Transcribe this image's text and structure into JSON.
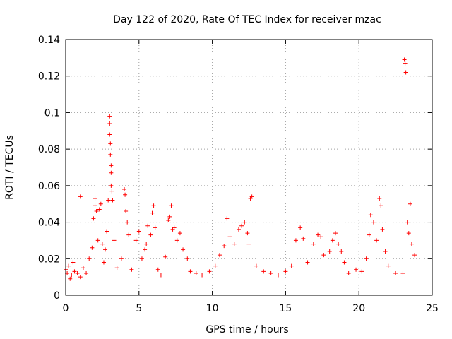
{
  "chart_data": {
    "type": "scatter",
    "title": "Day 122 of 2020, Rate Of TEC Index for receiver mzac",
    "xlabel": "GPS time / hours",
    "ylabel": "ROTI / TECUs",
    "xlim": [
      0,
      25
    ],
    "ylim": [
      0,
      0.14
    ],
    "xticks": [
      0,
      5,
      10,
      15,
      20,
      25
    ],
    "xtick_labels": [
      "0",
      "5",
      "10",
      "15",
      "20",
      "25"
    ],
    "yticks": [
      0,
      0.02,
      0.04,
      0.06,
      0.08,
      0.1,
      0.12,
      0.14
    ],
    "ytick_labels": [
      "0",
      "0.02",
      "0.04",
      "0.06",
      "0.08",
      "0.1",
      "0.12",
      "0.14"
    ],
    "grid": true,
    "marker": "+",
    "color": "#ff0000",
    "series": [
      {
        "name": "ROTI",
        "points": [
          [
            0.0,
            0.014
          ],
          [
            0.1,
            0.012
          ],
          [
            0.2,
            0.016
          ],
          [
            0.3,
            0.009
          ],
          [
            0.4,
            0.011
          ],
          [
            0.5,
            0.018
          ],
          [
            0.6,
            0.013
          ],
          [
            0.8,
            0.012
          ],
          [
            1.0,
            0.01
          ],
          [
            1.0,
            0.054
          ],
          [
            1.2,
            0.015
          ],
          [
            1.4,
            0.012
          ],
          [
            1.6,
            0.02
          ],
          [
            1.8,
            0.026
          ],
          [
            1.9,
            0.042
          ],
          [
            2.0,
            0.049
          ],
          [
            2.0,
            0.053
          ],
          [
            2.1,
            0.046
          ],
          [
            2.2,
            0.03
          ],
          [
            2.3,
            0.047
          ],
          [
            2.4,
            0.05
          ],
          [
            2.5,
            0.028
          ],
          [
            2.6,
            0.018
          ],
          [
            2.7,
            0.025
          ],
          [
            2.8,
            0.035
          ],
          [
            2.9,
            0.052
          ],
          [
            3.0,
            0.098
          ],
          [
            3.0,
            0.094
          ],
          [
            3.0,
            0.088
          ],
          [
            3.05,
            0.083
          ],
          [
            3.05,
            0.077
          ],
          [
            3.1,
            0.071
          ],
          [
            3.1,
            0.067
          ],
          [
            3.1,
            0.06
          ],
          [
            3.15,
            0.057
          ],
          [
            3.2,
            0.052
          ],
          [
            3.3,
            0.03
          ],
          [
            3.5,
            0.015
          ],
          [
            3.8,
            0.02
          ],
          [
            4.0,
            0.058
          ],
          [
            4.05,
            0.055
          ],
          [
            4.1,
            0.046
          ],
          [
            4.2,
            0.04
          ],
          [
            4.3,
            0.033
          ],
          [
            4.5,
            0.014
          ],
          [
            4.8,
            0.03
          ],
          [
            5.0,
            0.035
          ],
          [
            5.2,
            0.02
          ],
          [
            5.4,
            0.025
          ],
          [
            5.5,
            0.028
          ],
          [
            5.6,
            0.038
          ],
          [
            5.8,
            0.033
          ],
          [
            5.9,
            0.045
          ],
          [
            6.0,
            0.049
          ],
          [
            6.1,
            0.037
          ],
          [
            6.3,
            0.014
          ],
          [
            6.5,
            0.011
          ],
          [
            6.8,
            0.021
          ],
          [
            7.0,
            0.041
          ],
          [
            7.1,
            0.043
          ],
          [
            7.2,
            0.049
          ],
          [
            7.3,
            0.036
          ],
          [
            7.4,
            0.037
          ],
          [
            7.6,
            0.03
          ],
          [
            7.8,
            0.034
          ],
          [
            8.0,
            0.025
          ],
          [
            8.3,
            0.02
          ],
          [
            8.5,
            0.013
          ],
          [
            8.9,
            0.012
          ],
          [
            9.3,
            0.011
          ],
          [
            9.8,
            0.013
          ],
          [
            10.2,
            0.016
          ],
          [
            10.5,
            0.022
          ],
          [
            10.8,
            0.027
          ],
          [
            11.0,
            0.042
          ],
          [
            11.2,
            0.032
          ],
          [
            11.5,
            0.028
          ],
          [
            11.8,
            0.036
          ],
          [
            12.0,
            0.038
          ],
          [
            12.2,
            0.04
          ],
          [
            12.4,
            0.034
          ],
          [
            12.5,
            0.028
          ],
          [
            12.6,
            0.053
          ],
          [
            12.7,
            0.054
          ],
          [
            13.0,
            0.016
          ],
          [
            13.5,
            0.013
          ],
          [
            14.0,
            0.012
          ],
          [
            14.5,
            0.011
          ],
          [
            15.0,
            0.013
          ],
          [
            15.4,
            0.016
          ],
          [
            15.7,
            0.03
          ],
          [
            16.0,
            0.037
          ],
          [
            16.2,
            0.031
          ],
          [
            16.5,
            0.018
          ],
          [
            16.9,
            0.028
          ],
          [
            17.2,
            0.033
          ],
          [
            17.4,
            0.032
          ],
          [
            17.6,
            0.022
          ],
          [
            18.0,
            0.024
          ],
          [
            18.2,
            0.03
          ],
          [
            18.4,
            0.034
          ],
          [
            18.6,
            0.028
          ],
          [
            18.8,
            0.024
          ],
          [
            19.0,
            0.018
          ],
          [
            19.3,
            0.012
          ],
          [
            19.8,
            0.014
          ],
          [
            20.2,
            0.013
          ],
          [
            20.5,
            0.02
          ],
          [
            20.7,
            0.033
          ],
          [
            20.8,
            0.044
          ],
          [
            21.0,
            0.04
          ],
          [
            21.2,
            0.03
          ],
          [
            21.4,
            0.053
          ],
          [
            21.5,
            0.049
          ],
          [
            21.6,
            0.036
          ],
          [
            21.8,
            0.024
          ],
          [
            22.0,
            0.016
          ],
          [
            22.5,
            0.012
          ],
          [
            23.0,
            0.012
          ],
          [
            23.1,
            0.129
          ],
          [
            23.15,
            0.127
          ],
          [
            23.2,
            0.122
          ],
          [
            23.3,
            0.04
          ],
          [
            23.4,
            0.034
          ],
          [
            23.5,
            0.05
          ],
          [
            23.6,
            0.028
          ],
          [
            23.8,
            0.022
          ]
        ]
      }
    ]
  }
}
